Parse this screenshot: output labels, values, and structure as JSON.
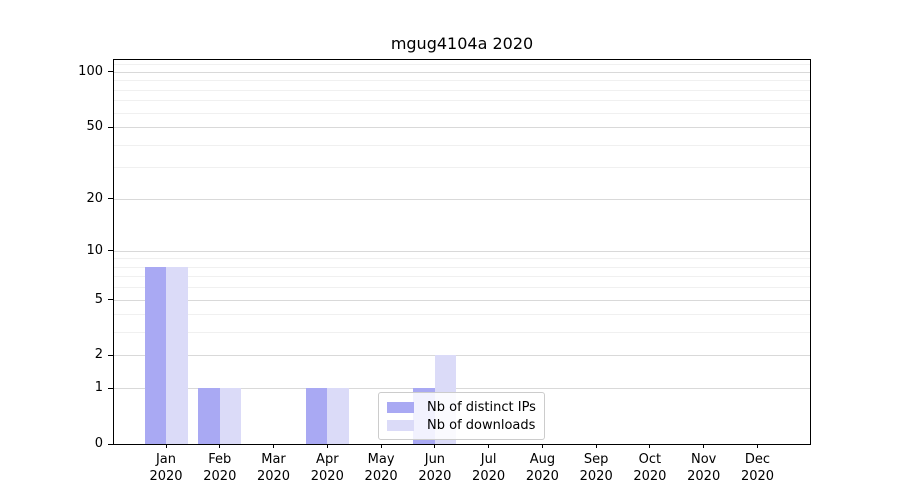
{
  "figure": {
    "title": "mgug4104a 2020"
  },
  "chart_data": {
    "type": "bar",
    "title": "mgug4104a 2020",
    "categories": [
      "Jan 2020",
      "Feb 2020",
      "Mar 2020",
      "Apr 2020",
      "May 2020",
      "Jun 2020",
      "Jul 2020",
      "Aug 2020",
      "Sep 2020",
      "Oct 2020",
      "Nov 2020",
      "Dec 2020"
    ],
    "series": [
      {
        "name": "Nb of distinct IPs",
        "color": "#a9a9f3",
        "values": [
          8,
          1,
          0,
          1,
          0,
          1,
          0,
          0,
          0,
          0,
          0,
          0
        ]
      },
      {
        "name": "Nb of downloads",
        "color": "#dbdbf8",
        "values": [
          8,
          1,
          0,
          1,
          0,
          2,
          0,
          0,
          0,
          0,
          0,
          0
        ]
      }
    ],
    "xlabel": "",
    "ylabel": "",
    "y_scale": "log1p",
    "ylim": [
      0,
      116
    ],
    "y_ticks_labeled": [
      0,
      1,
      2,
      5,
      10,
      20,
      50,
      100
    ],
    "y_minor_gridlines": [
      3,
      4,
      6,
      7,
      8,
      9,
      30,
      40,
      60,
      70,
      80,
      90,
      110
    ],
    "grid": "horizontal",
    "legend_position": "lower-center-inside"
  },
  "colors": {
    "major_grid": "#d9d9d9",
    "minor_grid": "#f0f0f0",
    "axis": "#000000",
    "legend_border": "#cccccc",
    "background": "#ffffff"
  }
}
